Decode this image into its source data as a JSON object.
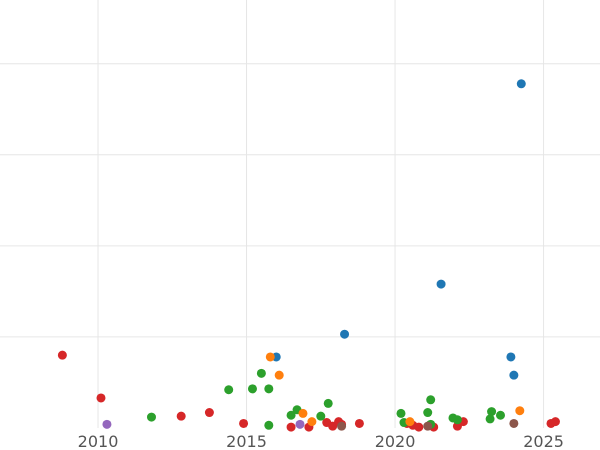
{
  "chart_data": {
    "type": "scatter",
    "title": "",
    "xlabel": "",
    "ylabel": "",
    "xlim": [
      2006.7,
      2026.9
    ],
    "ylim": [
      0,
      4.7
    ],
    "grid": true,
    "x_ticks": [
      2010,
      2015,
      2020,
      2025
    ],
    "x_tick_labels": [
      "2010",
      "2015",
      "2020",
      "2025"
    ],
    "y_gridlines": [
      1,
      2,
      3,
      4
    ],
    "series": [
      {
        "color": "#1f77b4",
        "points": [
          {
            "x": 2024.25,
            "y": 3.78
          },
          {
            "x": 2021.55,
            "y": 1.58
          },
          {
            "x": 2018.3,
            "y": 1.03
          },
          {
            "x": 2023.9,
            "y": 0.78
          },
          {
            "x": 2024.0,
            "y": 0.58
          },
          {
            "x": 2016.0,
            "y": 0.78
          }
        ]
      },
      {
        "color": "#d62728",
        "points": [
          {
            "x": 2008.8,
            "y": 0.8
          },
          {
            "x": 2010.1,
            "y": 0.33
          },
          {
            "x": 2012.8,
            "y": 0.13
          },
          {
            "x": 2013.75,
            "y": 0.17
          },
          {
            "x": 2014.9,
            "y": 0.05
          },
          {
            "x": 2016.5,
            "y": 0.01
          },
          {
            "x": 2017.1,
            "y": 0.01
          },
          {
            "x": 2017.7,
            "y": 0.06
          },
          {
            "x": 2017.9,
            "y": 0.02
          },
          {
            "x": 2018.1,
            "y": 0.07
          },
          {
            "x": 2018.2,
            "y": 0.04
          },
          {
            "x": 2018.8,
            "y": 0.05
          },
          {
            "x": 2020.4,
            "y": 0.05
          },
          {
            "x": 2020.6,
            "y": 0.03
          },
          {
            "x": 2020.8,
            "y": 0.01
          },
          {
            "x": 2021.3,
            "y": 0.01
          },
          {
            "x": 2022.1,
            "y": 0.02
          },
          {
            "x": 2022.3,
            "y": 0.07
          },
          {
            "x": 2025.25,
            "y": 0.05
          },
          {
            "x": 2025.4,
            "y": 0.07
          }
        ]
      },
      {
        "color": "#2ca02c",
        "points": [
          {
            "x": 2011.8,
            "y": 0.12
          },
          {
            "x": 2014.4,
            "y": 0.42
          },
          {
            "x": 2015.2,
            "y": 0.43
          },
          {
            "x": 2015.5,
            "y": 0.6
          },
          {
            "x": 2015.75,
            "y": 0.43
          },
          {
            "x": 2015.75,
            "y": 0.03
          },
          {
            "x": 2016.5,
            "y": 0.14
          },
          {
            "x": 2016.7,
            "y": 0.2
          },
          {
            "x": 2017.5,
            "y": 0.13
          },
          {
            "x": 2017.75,
            "y": 0.27
          },
          {
            "x": 2020.2,
            "y": 0.16
          },
          {
            "x": 2020.3,
            "y": 0.06
          },
          {
            "x": 2021.1,
            "y": 0.17
          },
          {
            "x": 2021.2,
            "y": 0.31
          },
          {
            "x": 2021.2,
            "y": 0.04
          },
          {
            "x": 2021.95,
            "y": 0.11
          },
          {
            "x": 2022.1,
            "y": 0.09
          },
          {
            "x": 2023.2,
            "y": 0.1
          },
          {
            "x": 2023.25,
            "y": 0.18
          },
          {
            "x": 2023.55,
            "y": 0.14
          }
        ]
      },
      {
        "color": "#ff7f0e",
        "points": [
          {
            "x": 2015.8,
            "y": 0.78
          },
          {
            "x": 2016.1,
            "y": 0.58
          },
          {
            "x": 2016.9,
            "y": 0.16
          },
          {
            "x": 2017.2,
            "y": 0.07
          },
          {
            "x": 2020.5,
            "y": 0.07
          },
          {
            "x": 2024.2,
            "y": 0.19
          }
        ]
      },
      {
        "color": "#9467bd",
        "points": [
          {
            "x": 2010.3,
            "y": 0.04
          },
          {
            "x": 2016.8,
            "y": 0.04
          }
        ]
      },
      {
        "color": "#8c564b",
        "points": [
          {
            "x": 2018.2,
            "y": 0.02
          },
          {
            "x": 2021.1,
            "y": 0.02
          },
          {
            "x": 2024.0,
            "y": 0.05
          }
        ]
      }
    ]
  }
}
